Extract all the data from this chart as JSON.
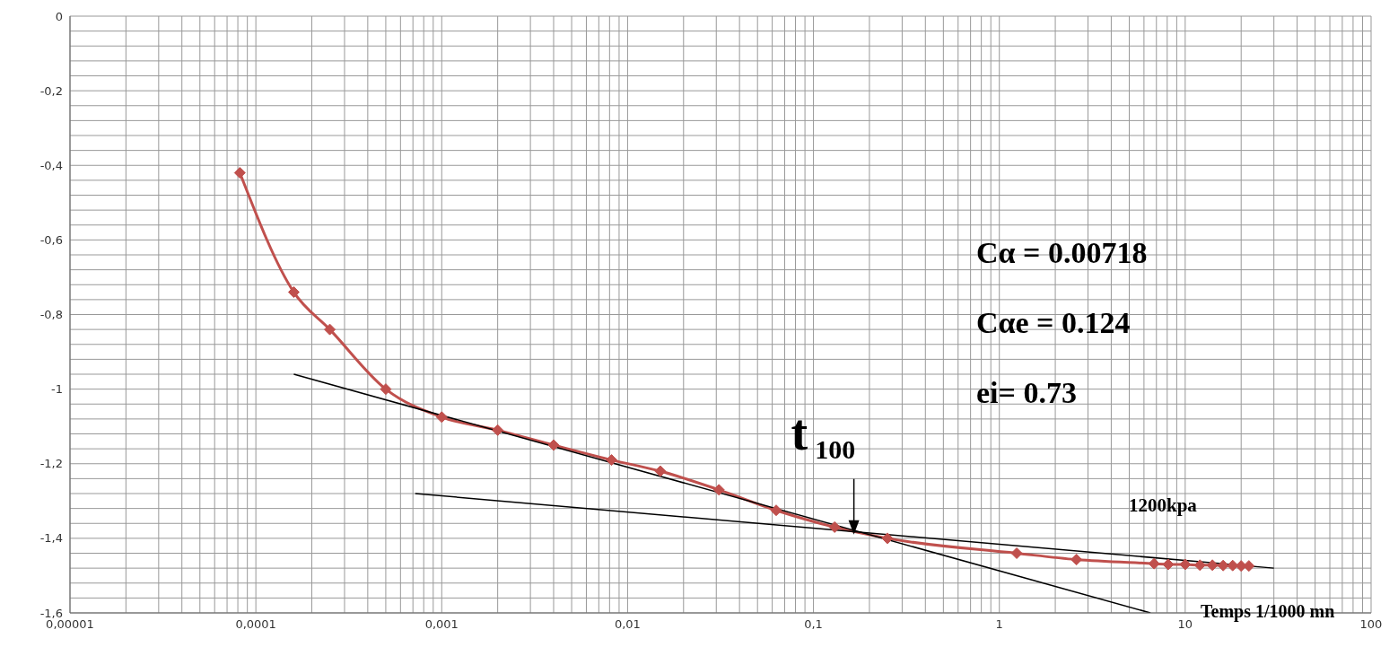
{
  "chart_data": {
    "type": "line",
    "xlabel": "Temps 1/1000 mn",
    "log": "x",
    "xlim": [
      1e-05,
      100
    ],
    "ylim": [
      -1.6,
      0
    ],
    "xticks": [
      {
        "value": 1e-05,
        "label": "0,00001"
      },
      {
        "value": 2e-05,
        "label": null
      },
      {
        "value": 3e-05,
        "label": null
      },
      {
        "value": 4e-05,
        "label": null
      },
      {
        "value": 5e-05,
        "label": null
      },
      {
        "value": 6e-05,
        "label": null
      },
      {
        "value": 7e-05,
        "label": null
      },
      {
        "value": 8e-05,
        "label": null
      },
      {
        "value": 9e-05,
        "label": null
      },
      {
        "value": 0.0001,
        "label": "0,0001"
      },
      {
        "value": 0.0002,
        "label": null
      },
      {
        "value": 0.0003,
        "label": null
      },
      {
        "value": 0.0004,
        "label": null
      },
      {
        "value": 0.0005,
        "label": null
      },
      {
        "value": 0.0006,
        "label": null
      },
      {
        "value": 0.0007,
        "label": null
      },
      {
        "value": 0.0008,
        "label": null
      },
      {
        "value": 0.0009,
        "label": null
      },
      {
        "value": 0.001,
        "label": "0,001"
      },
      {
        "value": 0.002,
        "label": null
      },
      {
        "value": 0.003,
        "label": null
      },
      {
        "value": 0.004,
        "label": null
      },
      {
        "value": 0.005,
        "label": null
      },
      {
        "value": 0.006,
        "label": null
      },
      {
        "value": 0.007,
        "label": null
      },
      {
        "value": 0.008,
        "label": null
      },
      {
        "value": 0.009,
        "label": null
      },
      {
        "value": 0.01,
        "label": "0,01"
      },
      {
        "value": 0.02,
        "label": null
      },
      {
        "value": 0.03,
        "label": null
      },
      {
        "value": 0.04,
        "label": null
      },
      {
        "value": 0.05,
        "label": null
      },
      {
        "value": 0.06,
        "label": null
      },
      {
        "value": 0.07,
        "label": null
      },
      {
        "value": 0.08,
        "label": null
      },
      {
        "value": 0.09,
        "label": null
      },
      {
        "value": 0.1,
        "label": "0,1"
      },
      {
        "value": 0.2,
        "label": null
      },
      {
        "value": 0.3,
        "label": null
      },
      {
        "value": 0.4,
        "label": null
      },
      {
        "value": 0.5,
        "label": null
      },
      {
        "value": 0.6,
        "label": null
      },
      {
        "value": 0.7,
        "label": null
      },
      {
        "value": 0.8,
        "label": null
      },
      {
        "value": 0.9,
        "label": null
      },
      1,
      {
        "value": 2,
        "label": null
      },
      {
        "value": 3,
        "label": null
      },
      {
        "value": 4,
        "label": null
      },
      {
        "value": 5,
        "label": null
      },
      {
        "value": 6,
        "label": null
      },
      {
        "value": 7,
        "label": null
      },
      {
        "value": 8,
        "label": null
      },
      {
        "value": 9,
        "label": null
      },
      10,
      {
        "value": 20,
        "label": null
      },
      {
        "value": 30,
        "label": null
      },
      {
        "value": 40,
        "label": null
      },
      {
        "value": 50,
        "label": null
      },
      {
        "value": 60,
        "label": null
      },
      {
        "value": 70,
        "label": null
      },
      {
        "value": 80,
        "label": null
      },
      {
        "value": 90,
        "label": null
      },
      100
    ],
    "yticks": [
      {
        "value": -1.6,
        "label": "-1,6"
      },
      {
        "value": -1.56,
        "label": null
      },
      {
        "value": -1.52,
        "label": null
      },
      {
        "value": -1.48,
        "label": null
      },
      {
        "value": -1.44,
        "label": null
      },
      {
        "value": -1.4,
        "label": "-1,4"
      },
      {
        "value": -1.36,
        "label": null
      },
      {
        "value": -1.32,
        "label": null
      },
      {
        "value": -1.28,
        "label": null
      },
      {
        "value": -1.24,
        "label": null
      },
      {
        "value": -1.2,
        "label": "-1,2"
      },
      {
        "value": -1.16,
        "label": null
      },
      {
        "value": -1.12,
        "label": null
      },
      {
        "value": -1.08,
        "label": null
      },
      {
        "value": -1.04,
        "label": null
      },
      -1,
      {
        "value": -0.96,
        "label": null
      },
      {
        "value": -0.92,
        "label": null
      },
      {
        "value": -0.88,
        "label": null
      },
      {
        "value": -0.84,
        "label": null
      },
      {
        "value": -0.8,
        "label": "-0,8"
      },
      {
        "value": -0.76,
        "label": null
      },
      {
        "value": -0.72,
        "label": null
      },
      {
        "value": -0.68,
        "label": null
      },
      {
        "value": -0.64,
        "label": null
      },
      {
        "value": -0.6,
        "label": "-0,6"
      },
      {
        "value": -0.56,
        "label": null
      },
      {
        "value": -0.52,
        "label": null
      },
      {
        "value": -0.48,
        "label": null
      },
      {
        "value": -0.44,
        "label": null
      },
      {
        "value": -0.4,
        "label": "-0,4"
      },
      {
        "value": -0.36,
        "label": null
      },
      {
        "value": -0.32,
        "label": null
      },
      {
        "value": -0.28,
        "label": null
      },
      {
        "value": -0.24,
        "label": null
      },
      {
        "value": -0.2,
        "label": "-0,2"
      },
      {
        "value": -0.16,
        "label": null
      },
      {
        "value": -0.12,
        "label": null
      },
      {
        "value": -0.08,
        "label": null
      },
      {
        "value": -0.04,
        "label": null
      },
      0
    ],
    "grid": true,
    "legend": false,
    "line_style": "solid",
    "series": [
      {
        "name": "1200kpa",
        "color": "#c0504d",
        "marker": "diamond",
        "x": [
          8.2e-05,
          0.00016,
          0.00025,
          0.0005,
          0.001,
          0.002,
          0.004,
          0.0082,
          0.015,
          0.031,
          0.063,
          0.13,
          0.25,
          1.24,
          2.6,
          6.8,
          8.1,
          10,
          12,
          14,
          16,
          18,
          20,
          22
        ],
        "values": [
          -0.42,
          -0.74,
          -0.84,
          -1.0,
          -1.075,
          -1.11,
          -1.15,
          -1.19,
          -1.22,
          -1.27,
          -1.325,
          -1.37,
          -1.4,
          -1.44,
          -1.457,
          -1.468,
          -1.47,
          -1.47,
          -1.472,
          -1.472,
          -1.473,
          -1.473,
          -1.474,
          -1.474
        ]
      },
      {
        "type": "line",
        "color": "#000000",
        "marker": "none",
        "x": [
          0.00016,
          6.5
        ],
        "values": [
          -0.96,
          -1.6
        ]
      },
      {
        "type": "line",
        "color": "#000000",
        "marker": "none",
        "x": [
          0.00072,
          30
        ],
        "values": [
          -1.28,
          -1.48
        ]
      }
    ],
    "annotations": [
      {
        "text": "t$_{100}$",
        "x": 0.165,
        "y": -1.39
      },
      "Cα = 0.00718",
      "Cαe = 0.124",
      "ei= 0.73"
    ]
  }
}
